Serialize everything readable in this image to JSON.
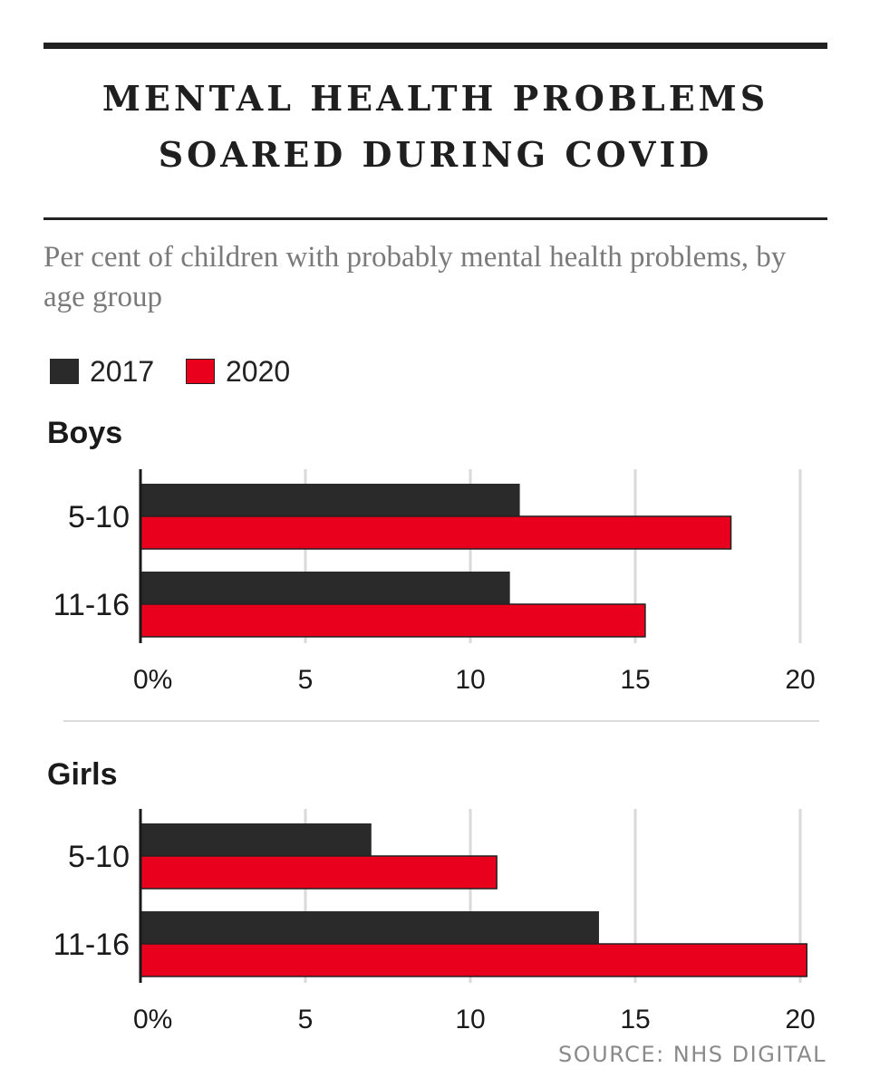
{
  "title_line1": "MENTAL HEALTH PROBLEMS",
  "title_line2": "SOARED DURING COVID",
  "subtitle": "Per cent of children with probably mental health problems, by age group",
  "source": "SOURCE: NHS DIGITAL",
  "colors": {
    "2017": "#2a2a2a",
    "2020": "#e8001c",
    "grid": "#d9d9d9",
    "axis": "#1a1a1a"
  },
  "legend": [
    "2017",
    "2020"
  ],
  "chart_data": [
    {
      "type": "bar",
      "orientation": "horizontal",
      "title": "Boys",
      "categories": [
        "5-10",
        "11-16"
      ],
      "series": [
        {
          "name": "2017",
          "values": [
            11.5,
            11.2
          ]
        },
        {
          "name": "2020",
          "values": [
            17.9,
            15.3
          ]
        }
      ],
      "xlim": [
        0,
        20
      ],
      "xticks": [
        "0%",
        "5",
        "10",
        "15",
        "20"
      ],
      "grid": true,
      "legend_position": "top-left"
    },
    {
      "type": "bar",
      "orientation": "horizontal",
      "title": "Girls",
      "categories": [
        "5-10",
        "11-16"
      ],
      "series": [
        {
          "name": "2017",
          "values": [
            7.0,
            13.9
          ]
        },
        {
          "name": "2020",
          "values": [
            10.8,
            20.2
          ]
        }
      ],
      "xlim": [
        0,
        20
      ],
      "xticks": [
        "0%",
        "5",
        "10",
        "15",
        "20"
      ],
      "grid": true,
      "legend_position": "top-left"
    }
  ]
}
